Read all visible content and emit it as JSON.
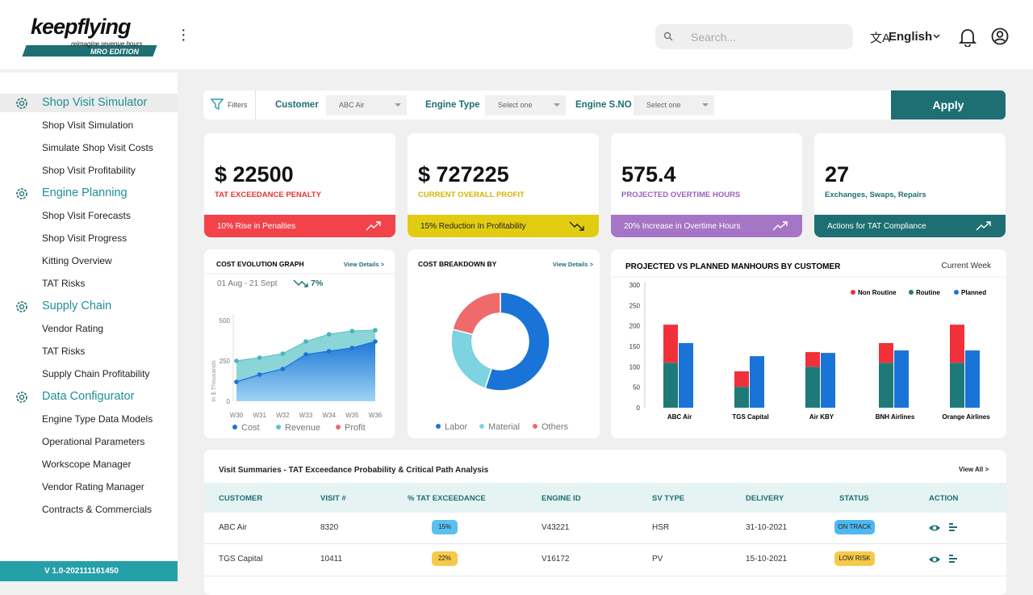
{
  "header": {
    "logo": "keepflying",
    "tagline": "reimagine revenue hours",
    "edition": "MRO EDITION",
    "search_placeholder": "Search...",
    "language": "English"
  },
  "sidebar": {
    "sections": [
      {
        "title": "Shop Visit Simulator",
        "items": [
          "Shop Visit Simulation",
          "Simulate Shop Visit Costs",
          "Shop Visit Profitability"
        ]
      },
      {
        "title": "Engine Planning",
        "items": [
          "Shop Visit Forecasts",
          "Shop Visit Progress",
          "Kitting Overview",
          "TAT Risks"
        ]
      },
      {
        "title": "Supply Chain",
        "items": [
          "Vendor Rating",
          "TAT Risks",
          "Supply Chain Profitability"
        ]
      },
      {
        "title": "Data Configurator",
        "items": [
          "Engine Type Data Models",
          "Operational Parameters",
          "Workscope Manager",
          "Vendor Rating Manager",
          "Contracts & Commercials"
        ]
      }
    ],
    "version": "V 1.0-202111161450"
  },
  "filters": {
    "label": "Filters",
    "fields": [
      {
        "label": "Customer",
        "value": "ABC Air"
      },
      {
        "label": "Engine Type",
        "value": "Select one"
      },
      {
        "label": "Engine S.NO",
        "value": "Select one"
      }
    ],
    "apply": "Apply"
  },
  "kpis": [
    {
      "value": "$ 22500",
      "label": "TAT EXCEEDANCE PENALTY",
      "note": "10% Rise in Penalties",
      "color": "#f2424a",
      "label_color": "#e83434",
      "trend": "up"
    },
    {
      "value": "$ 727225",
      "label": "CURRENT OVERALL PROFIT",
      "note": "15% Reduction In Profitability",
      "color": "#e2cc12",
      "label_color": "#d2b600",
      "trend": "down"
    },
    {
      "value": "575.4",
      "label": "PROJECTED OVERTIME HOURS",
      "note": "20% Increase in Overtime Hours",
      "color": "#a675c6",
      "label_color": "#9a5ec0",
      "trend": "up"
    },
    {
      "value": "27",
      "label": "Exchanges, Swaps, Repairs",
      "note": "Actions for TAT Compliance",
      "color": "#1d6f73",
      "label_color": "#1d6f73",
      "trend": "up"
    }
  ],
  "cost_evolution": {
    "type": "area",
    "title": "COST EVOLUTION GRAPH",
    "link": "View Details >",
    "period": "01 Aug - 21 Sept",
    "change": "7%",
    "y_label": "In $ Thousands",
    "categories": [
      "W30",
      "W31",
      "W32",
      "W33",
      "W34",
      "W35",
      "W36"
    ],
    "ylim": [
      0,
      500
    ],
    "yticks": [
      0,
      250,
      500
    ],
    "series": [
      {
        "name": "Cost",
        "color": "#1a73d6",
        "values": [
          120,
          165,
          200,
          290,
          310,
          330,
          370
        ]
      },
      {
        "name": "Revenue",
        "color": "#5ec4c8",
        "values": [
          250,
          270,
          295,
          370,
          415,
          435,
          440
        ]
      },
      {
        "name": "Profit",
        "color": "#ef6b6b",
        "values": [
          null,
          null,
          null,
          null,
          null,
          null,
          null
        ]
      }
    ]
  },
  "cost_breakdown": {
    "type": "pie",
    "title": "COST BREAKDOWN BY",
    "link": "View Details >",
    "categories": [
      "Labor",
      "Material",
      "Others"
    ],
    "values": [
      55,
      24,
      21
    ],
    "colors": [
      "#1a73d6",
      "#7dd3e0",
      "#ef6b6b"
    ]
  },
  "manhours": {
    "type": "bar",
    "title": "PROJECTED VS PLANNED MANHOURS BY CUSTOMER",
    "period": "Current Week",
    "categories": [
      "ABC Air",
      "TGS Capital",
      "Air KBY",
      "BNH Airlines",
      "Orange Airlines"
    ],
    "ylim": [
      0,
      300
    ],
    "yticks": [
      0,
      50,
      100,
      150,
      200,
      250,
      300
    ],
    "series": [
      {
        "name": "Non Routine",
        "color": "#f2303a",
        "stack": "a",
        "values": [
          93,
          38,
          36,
          48,
          93
        ]
      },
      {
        "name": "Routine",
        "color": "#1d7a78",
        "stack": "a",
        "values": [
          110,
          51,
          100,
          110,
          110
        ]
      },
      {
        "name": "Planned",
        "color": "#1a73d6",
        "stack": "b",
        "values": [
          158,
          126,
          134,
          140,
          140
        ]
      }
    ]
  },
  "table": {
    "title": "Visit Summaries - TAT Exceedance Probability & Critical Path Analysis",
    "link": "View All >",
    "columns": [
      "CUSTOMER",
      "VISIT #",
      "% TAT EXCEEDANCE",
      "ENGINE ID",
      "SV TYPE",
      "DELIVERY",
      "STATUS",
      "ACTION"
    ],
    "rows": [
      [
        "ABC Air",
        "8320",
        "15%",
        "V43221",
        "HSR",
        "31-10-2021",
        "ON TRACK"
      ],
      [
        "TGS Capital",
        "10411",
        "22%",
        "V16172",
        "PV",
        "15-10-2021",
        "LOW RISK"
      ]
    ],
    "badge_colors": [
      [
        "#5bc0f0",
        "#4fb8f0"
      ],
      [
        "#f5c94a",
        "#f5c94a"
      ]
    ]
  }
}
